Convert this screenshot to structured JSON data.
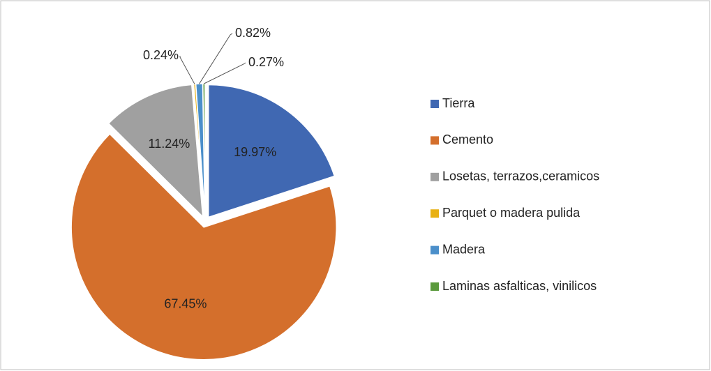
{
  "chart_data": {
    "type": "pie",
    "categories": [
      "Tierra",
      "Cemento",
      "Losetas, terrazos,ceramicos",
      "Parquet o madera pulida",
      "Madera",
      "Laminas asfalticas, vinilicos"
    ],
    "values": [
      19.97,
      67.45,
      11.24,
      0.24,
      0.82,
      0.27
    ],
    "value_labels": [
      "19.97%",
      "67.45%",
      "11.24%",
      "0.24%",
      "0.82%",
      "0.27%"
    ],
    "colors": [
      "#4068b2",
      "#d46f2c",
      "#a0a0a0",
      "#e8b114",
      "#4b8fca",
      "#5b9a3d"
    ],
    "legend": "right"
  }
}
